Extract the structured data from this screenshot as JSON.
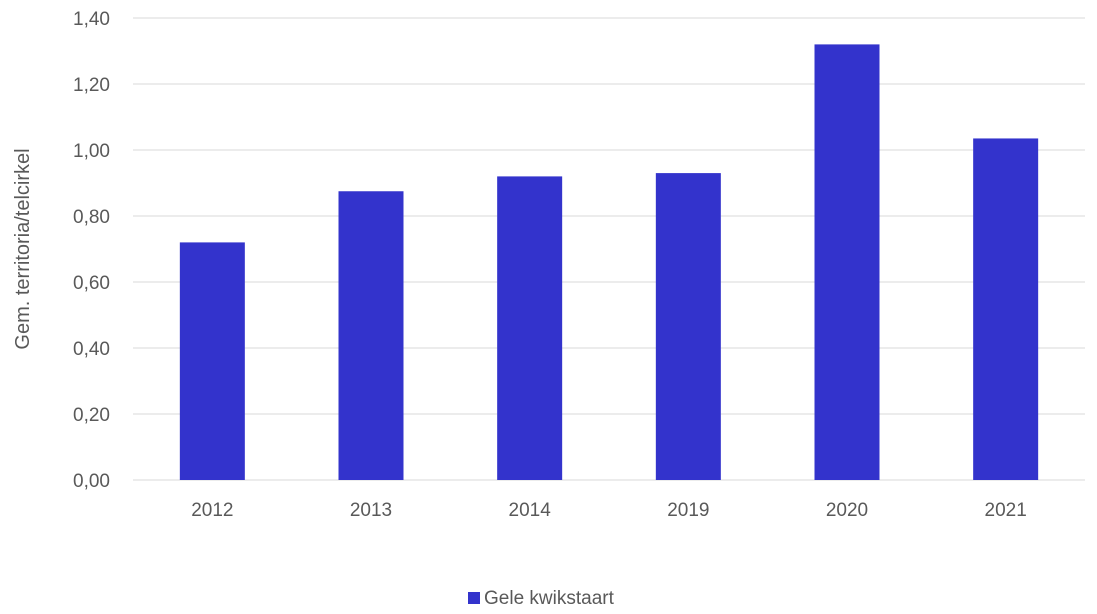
{
  "chart_data": {
    "type": "bar",
    "categories": [
      "2012",
      "2013",
      "2014",
      "2019",
      "2020",
      "2021"
    ],
    "series": [
      {
        "name": "Gele kwikstaart",
        "color": "#3333cc",
        "values": [
          0.72,
          0.875,
          0.92,
          0.93,
          1.32,
          1.035
        ]
      }
    ],
    "title": "",
    "xlabel": "",
    "ylabel": "Gem. territoria/telcirkel",
    "ylim": [
      0,
      1.4
    ],
    "yticks": [
      "0,00",
      "0,20",
      "0,40",
      "0,60",
      "0,80",
      "1,00",
      "1,20",
      "1,40"
    ],
    "grid": "horizontal",
    "legend": "bottom",
    "colors": {
      "gridline": "#d9d9d9",
      "text": "#595959"
    }
  }
}
